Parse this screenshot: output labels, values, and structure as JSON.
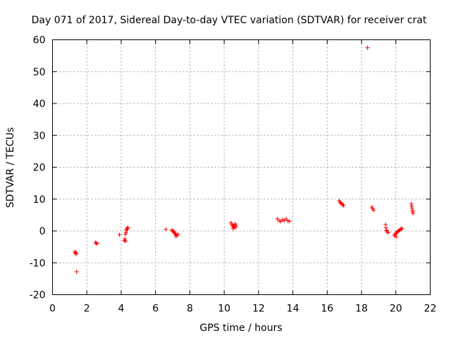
{
  "chart_data": {
    "type": "scatter",
    "title": "Day 071 of 2017, Sidereal Day-to-day VTEC variation (SDTVAR) for receiver crat",
    "xlabel": "GPS time / hours",
    "ylabel": "SDTVAR / TECUs",
    "xlim": [
      0,
      22
    ],
    "ylim": [
      -20,
      60
    ],
    "xticks": [
      "0",
      "2",
      "4",
      "6",
      "8",
      "10",
      "12",
      "14",
      "16",
      "18",
      "20",
      "22"
    ],
    "yticks": [
      "-20",
      "-10",
      "0",
      "10",
      "20",
      "30",
      "40",
      "50",
      "60"
    ],
    "xtick_values": [
      0,
      2,
      4,
      6,
      8,
      10,
      12,
      14,
      16,
      18,
      20,
      22
    ],
    "ytick_values": [
      -20,
      -10,
      0,
      10,
      20,
      30,
      40,
      50,
      60
    ],
    "grid": true,
    "marker": "+",
    "series": [
      {
        "name": "SDTVAR",
        "color": "#ff0000",
        "points": [
          [
            1.3,
            -6.5
          ],
          [
            1.33,
            -7.0
          ],
          [
            1.36,
            -6.8
          ],
          [
            1.38,
            -7.2
          ],
          [
            1.4,
            -12.8
          ],
          [
            2.5,
            -3.6
          ],
          [
            2.55,
            -4.0
          ],
          [
            2.6,
            -3.8
          ],
          [
            3.9,
            -1.2
          ],
          [
            4.18,
            -3.0
          ],
          [
            4.22,
            -2.5
          ],
          [
            4.25,
            -1.0
          ],
          [
            4.28,
            -0.5
          ],
          [
            4.3,
            0.2
          ],
          [
            4.33,
            0.6
          ],
          [
            4.36,
            0.9
          ],
          [
            4.4,
            1.0
          ],
          [
            4.25,
            -3.2
          ],
          [
            6.6,
            0.5
          ],
          [
            6.95,
            0.3
          ],
          [
            7.0,
            0.0
          ],
          [
            7.05,
            -0.3
          ],
          [
            7.1,
            -0.6
          ],
          [
            7.15,
            -0.9
          ],
          [
            7.2,
            -1.2
          ],
          [
            7.25,
            -1.5
          ],
          [
            7.3,
            -1.0
          ],
          [
            7.08,
            -0.2
          ],
          [
            7.18,
            -1.6
          ],
          [
            10.4,
            2.6
          ],
          [
            10.45,
            2.0
          ],
          [
            10.5,
            1.6
          ],
          [
            10.55,
            1.2
          ],
          [
            10.6,
            1.8
          ],
          [
            10.65,
            2.2
          ],
          [
            10.7,
            1.5
          ],
          [
            10.52,
            0.8
          ],
          [
            10.62,
            1.0
          ],
          [
            13.1,
            3.8
          ],
          [
            13.2,
            3.2
          ],
          [
            13.3,
            3.0
          ],
          [
            13.4,
            3.5
          ],
          [
            13.5,
            3.3
          ],
          [
            13.6,
            3.8
          ],
          [
            13.7,
            3.2
          ],
          [
            13.8,
            3.0
          ],
          [
            16.7,
            9.5
          ],
          [
            16.75,
            9.0
          ],
          [
            16.8,
            8.8
          ],
          [
            16.85,
            8.5
          ],
          [
            16.9,
            8.2
          ],
          [
            16.95,
            8.0
          ],
          [
            18.35,
            57.5
          ],
          [
            18.6,
            7.5
          ],
          [
            18.65,
            7.0
          ],
          [
            18.7,
            6.5
          ],
          [
            19.4,
            2.0
          ],
          [
            19.42,
            1.0
          ],
          [
            19.45,
            0.2
          ],
          [
            19.5,
            -0.2
          ],
          [
            19.55,
            -0.5
          ],
          [
            19.9,
            -1.5
          ],
          [
            19.95,
            -1.0
          ],
          [
            20.0,
            -0.8
          ],
          [
            20.05,
            -0.5
          ],
          [
            20.1,
            -0.2
          ],
          [
            20.15,
            0.0
          ],
          [
            20.2,
            0.2
          ],
          [
            20.25,
            0.4
          ],
          [
            20.3,
            0.6
          ],
          [
            20.35,
            0.8
          ],
          [
            20.02,
            -1.8
          ],
          [
            20.9,
            8.5
          ],
          [
            20.92,
            7.8
          ],
          [
            20.94,
            7.2
          ],
          [
            20.96,
            6.5
          ],
          [
            20.98,
            6.0
          ],
          [
            21.0,
            5.5
          ]
        ]
      }
    ]
  }
}
